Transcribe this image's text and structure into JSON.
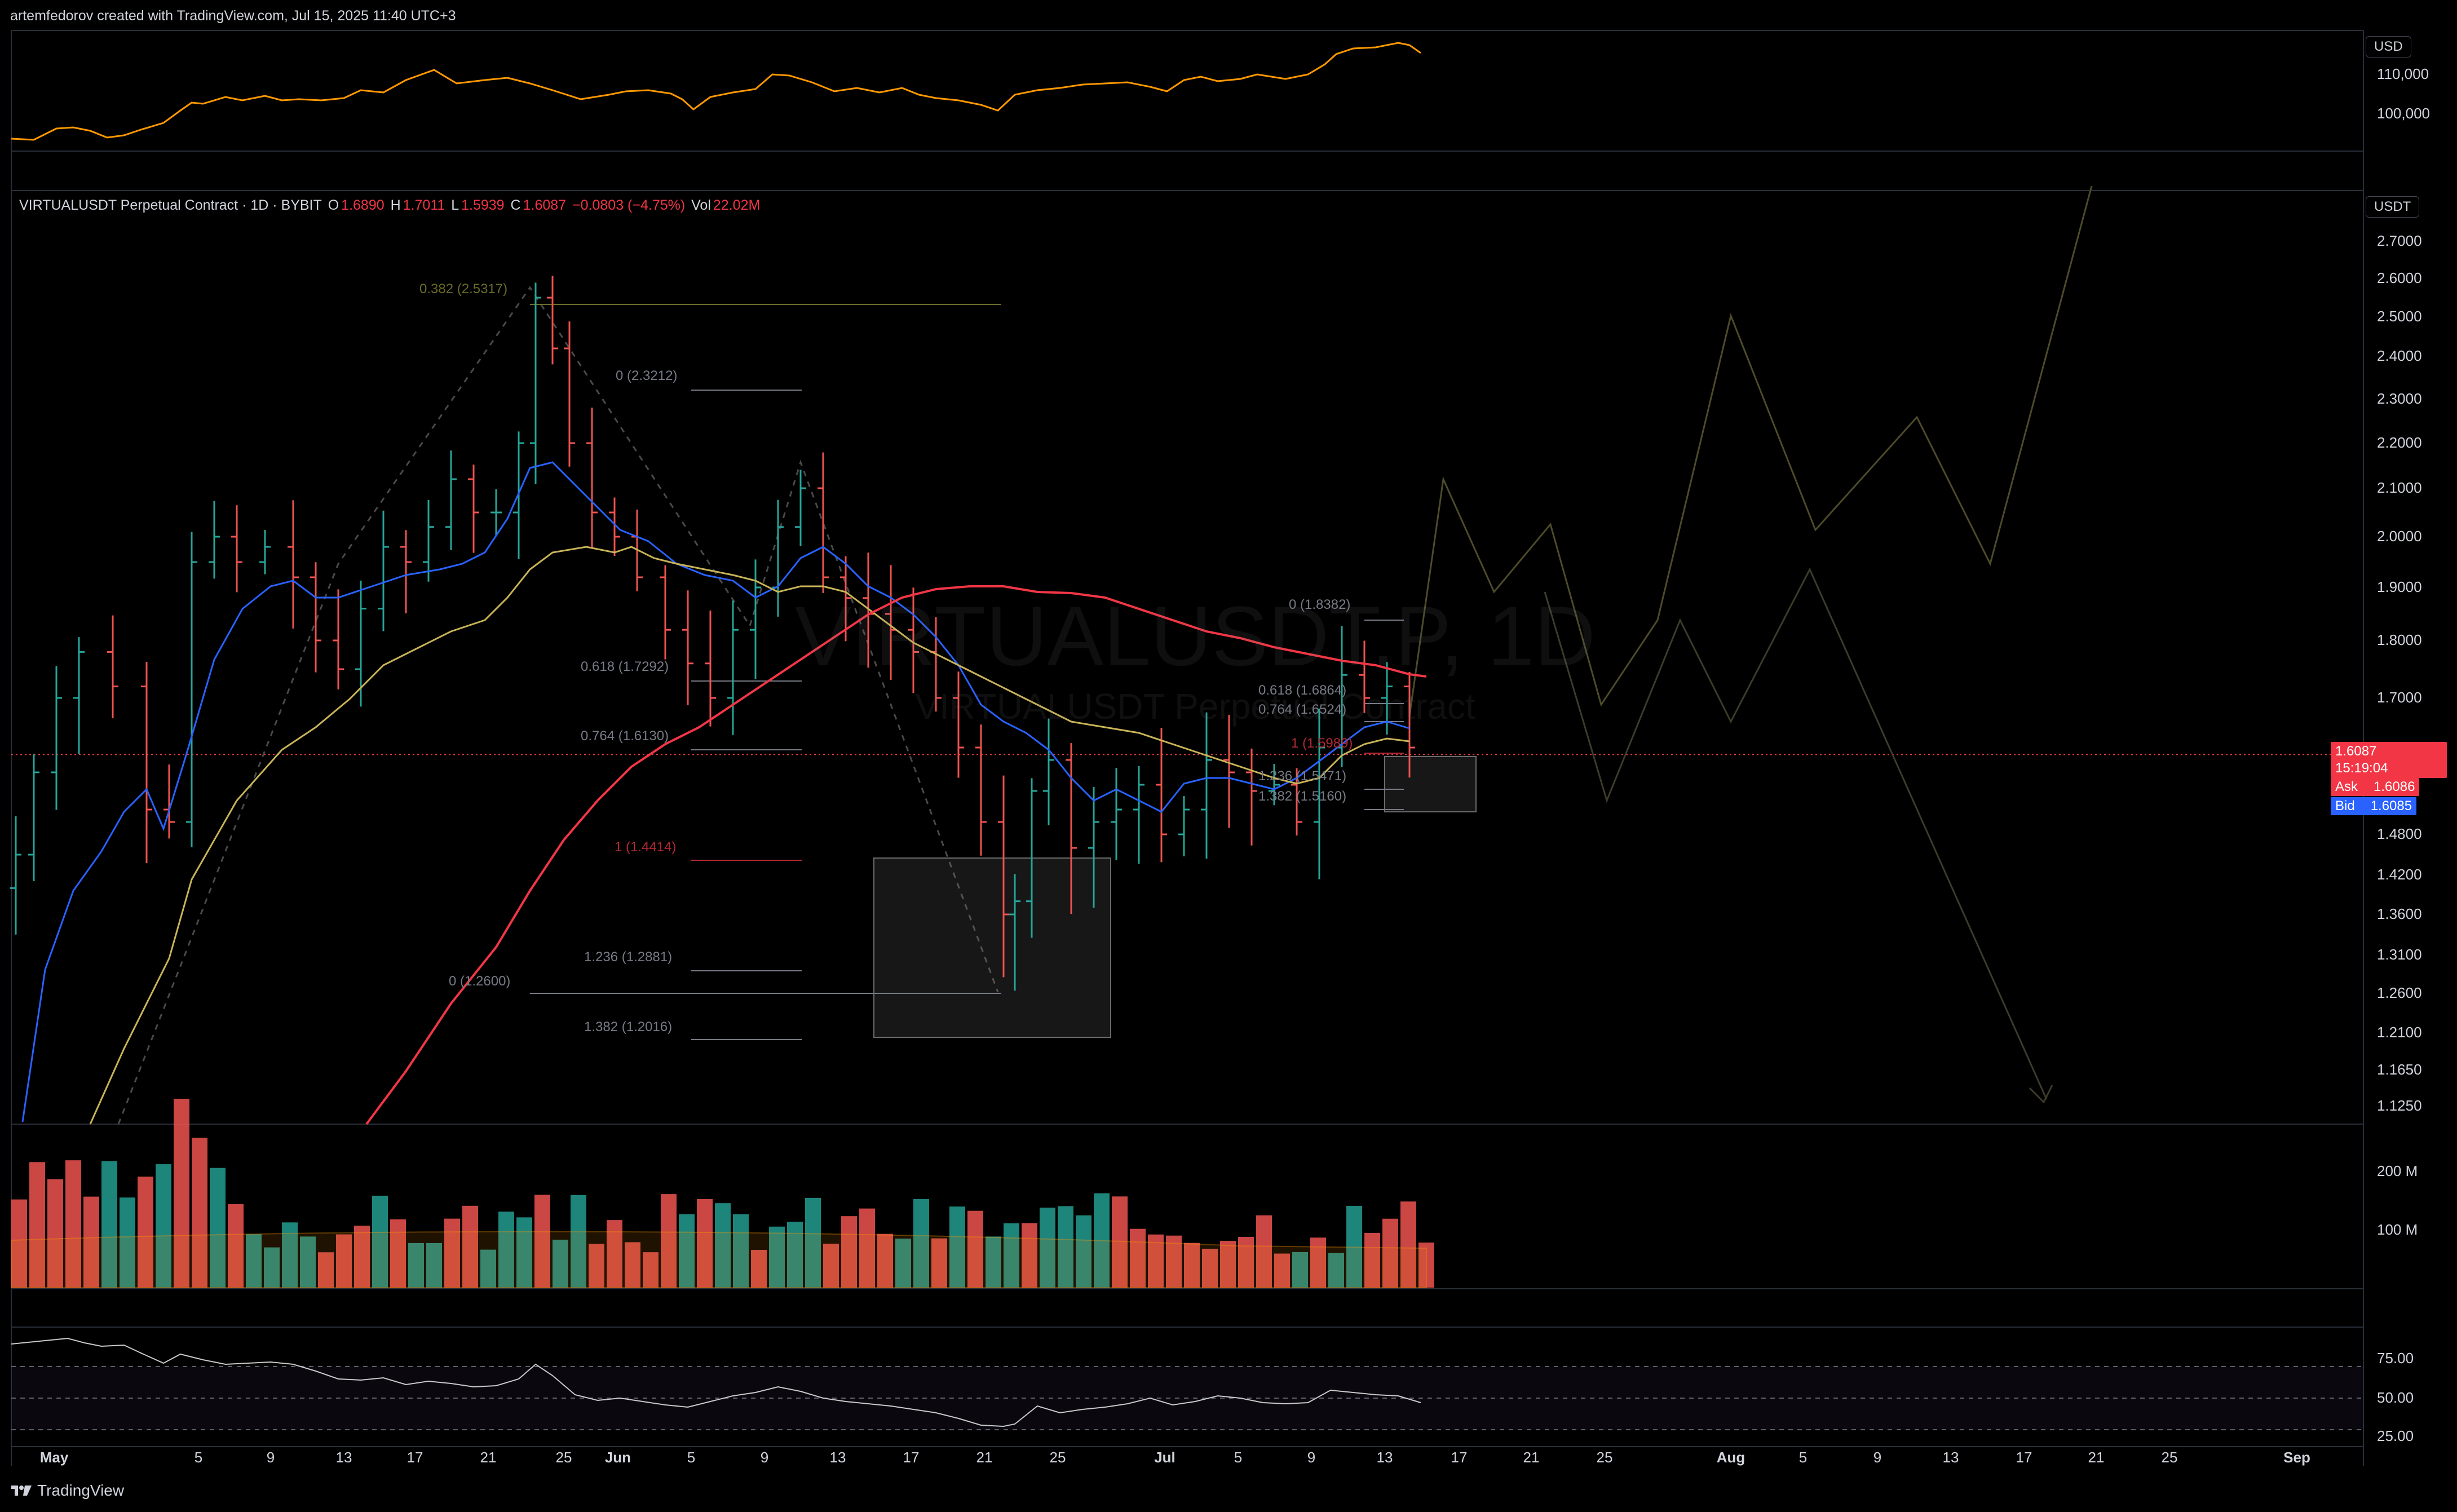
{
  "header": {
    "caption": "artemfedorov created with TradingView.com, Jul 15, 2025 11:40 UTC+3"
  },
  "symbol_line": {
    "name": "VIRTUALUSDT Perpetual Contract · 1D · BYBIT",
    "o_label": "O",
    "o": "1.6890",
    "h_label": "H",
    "h": "1.7011",
    "l_label": "L",
    "l": "1.5939",
    "c_label": "C",
    "c": "1.6087",
    "change": "−0.0803 (−4.75%)",
    "vol_label": "Vol",
    "vol": "22.02M"
  },
  "watermark": {
    "big": "VIRTUALUSDT.P, 1D",
    "small": "VIRTUALUSDT Perpetual Contract"
  },
  "top_pane": {
    "currency": "USD",
    "ticks": [
      "110,000",
      "100,000"
    ]
  },
  "main_pane": {
    "currency": "USDT",
    "ticks": [
      "2.7000",
      "2.6000",
      "2.5000",
      "2.4000",
      "2.3000",
      "2.2000",
      "2.1000",
      "2.0000",
      "1.9000",
      "1.8000",
      "1.7000",
      "1.4800",
      "1.4200",
      "1.3600",
      "1.3100",
      "1.2600",
      "1.2100",
      "1.1650",
      "1.1250"
    ],
    "last_price": "1.6087",
    "countdown": "15:19:04",
    "ask_label": "Ask",
    "ask": "1.6086",
    "bid_label": "Bid",
    "bid": "1.6085"
  },
  "fib_labels": [
    {
      "text": "0.382 (2.5317)",
      "color": "#6b6b2a"
    },
    {
      "text": "0 (2.3212)",
      "color": "#787b86"
    },
    {
      "text": "0.618 (1.7292)",
      "color": "#787b86"
    },
    {
      "text": "0.764 (1.6130)",
      "color": "#787b86"
    },
    {
      "text": "1 (1.4414)",
      "color": "#b22833"
    },
    {
      "text": "1.236 (1.2881)",
      "color": "#787b86"
    },
    {
      "text": "0 (1.2600)",
      "color": "#787b86"
    },
    {
      "text": "1.382 (1.2016)",
      "color": "#787b86"
    },
    {
      "text": "0 (1.8382)",
      "color": "#787b86"
    },
    {
      "text": "0.618 (1.6864)",
      "color": "#787b86"
    },
    {
      "text": "0.764 (1.6524)",
      "color": "#787b86"
    },
    {
      "text": "1 (1.5989)",
      "color": "#b22833"
    },
    {
      "text": "1.236 (1.5471)",
      "color": "#787b86"
    },
    {
      "text": "1.382 (1.5160)",
      "color": "#787b86"
    }
  ],
  "volume_pane": {
    "ticks": [
      "200 M",
      "100 M"
    ]
  },
  "rsi_pane": {
    "ticks": [
      "75.00",
      "50.00",
      "25.00"
    ]
  },
  "time_axis": {
    "labels": [
      "May",
      "5",
      "9",
      "13",
      "17",
      "21",
      "25",
      "Jun",
      "5",
      "9",
      "13",
      "17",
      "21",
      "25",
      "Jul",
      "5",
      "9",
      "13",
      "17",
      "21",
      "25",
      "Aug",
      "5",
      "9",
      "13",
      "17",
      "21",
      "25",
      "Sep"
    ]
  },
  "footer": {
    "brand": "TradingView",
    "logo": "tradingview-logo"
  },
  "colors": {
    "background": "#000000",
    "up": "#26a69a",
    "down": "#ef5350",
    "ma_red": "#f23645",
    "ma_blue": "#2962ff",
    "ma_yellow": "#c9b458",
    "btc_line": "#ff9800",
    "ask": "#f23645",
    "bid": "#2962ff"
  }
}
